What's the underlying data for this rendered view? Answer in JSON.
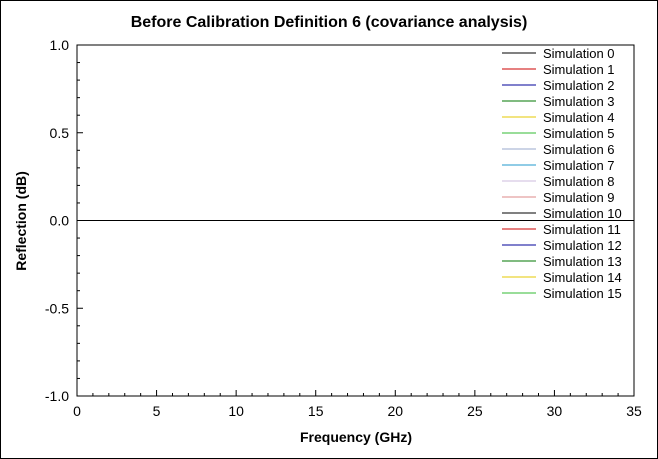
{
  "chart_data": {
    "type": "line",
    "title": "Before Calibration Definition 6 (covariance analysis)",
    "xlabel": "Frequency (GHz)",
    "ylabel": "Reflection (dB)",
    "xlim": [
      0,
      35
    ],
    "ylim": [
      -1.0,
      1.0
    ],
    "x_ticks": [
      "0",
      "5",
      "10",
      "15",
      "20",
      "25",
      "30",
      "35"
    ],
    "y_ticks": [
      "1.0",
      "0.5",
      "0.0",
      "-0.5",
      "-1.0"
    ],
    "grid": false,
    "legend_position": "top-right",
    "x": [
      0,
      35
    ],
    "series": [
      {
        "name": "Simulation 0",
        "color": "#000000",
        "values": [
          0,
          0
        ]
      },
      {
        "name": "Simulation 1",
        "color": "#cc0000",
        "values": [
          0,
          0
        ]
      },
      {
        "name": "Simulation 2",
        "color": "#000099",
        "values": [
          0,
          0
        ]
      },
      {
        "name": "Simulation 3",
        "color": "#007700",
        "values": [
          0,
          0
        ]
      },
      {
        "name": "Simulation 4",
        "color": "#e6c800",
        "values": [
          0,
          0
        ]
      },
      {
        "name": "Simulation 5",
        "color": "#33bb33",
        "values": [
          0,
          0
        ]
      },
      {
        "name": "Simulation 6",
        "color": "#99aacc",
        "values": [
          0,
          0
        ]
      },
      {
        "name": "Simulation 7",
        "color": "#2299cc",
        "values": [
          0,
          0
        ]
      },
      {
        "name": "Simulation 8",
        "color": "#ccbbdd",
        "values": [
          0,
          0
        ]
      },
      {
        "name": "Simulation 9",
        "color": "#dd8888",
        "values": [
          0,
          0
        ]
      },
      {
        "name": "Simulation 10",
        "color": "#000000",
        "values": [
          0,
          0
        ]
      },
      {
        "name": "Simulation 11",
        "color": "#cc0000",
        "values": [
          0,
          0
        ]
      },
      {
        "name": "Simulation 12",
        "color": "#000099",
        "values": [
          0,
          0
        ]
      },
      {
        "name": "Simulation 13",
        "color": "#007700",
        "values": [
          0,
          0
        ]
      },
      {
        "name": "Simulation 14",
        "color": "#e6c800",
        "values": [
          0,
          0
        ]
      },
      {
        "name": "Simulation 15",
        "color": "#33bb33",
        "values": [
          0,
          0
        ]
      }
    ]
  }
}
